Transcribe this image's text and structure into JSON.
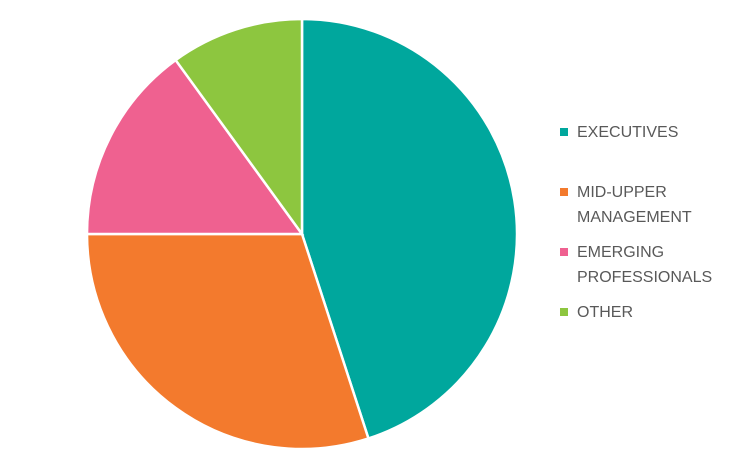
{
  "chart_data": {
    "type": "pie",
    "categories": [
      "EXECUTIVES",
      "MID-UPPER MANAGEMENT",
      "EMERGING PROFESSIONALS",
      "OTHER"
    ],
    "values": [
      45,
      30,
      15,
      10
    ],
    "colors": [
      "#00a79d",
      "#f37a2d",
      "#ef6190",
      "#8dc63f"
    ],
    "legend": "right"
  }
}
